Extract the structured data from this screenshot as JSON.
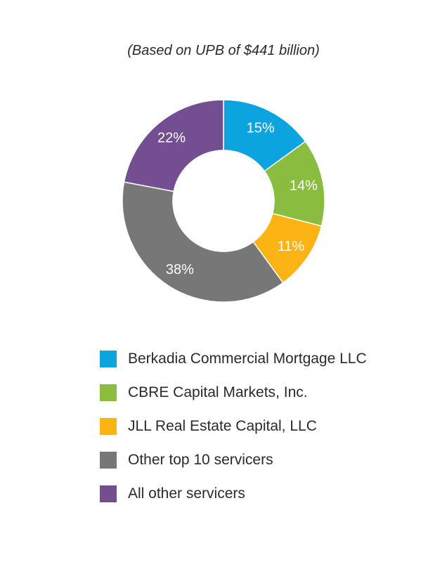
{
  "chart_data": {
    "type": "pie",
    "subtitle": "(Based on UPB of $441 billion)",
    "slices": [
      {
        "name": "Berkadia Commercial Mortgage LLC",
        "value": 15,
        "label": "15%",
        "color": "#0ba4df"
      },
      {
        "name": "CBRE Capital Markets, Inc.",
        "value": 14,
        "label": "14%",
        "color": "#8abd3f"
      },
      {
        "name": "JLL Real Estate Capital, LLC",
        "value": 11,
        "label": "11%",
        "color": "#fcb415"
      },
      {
        "name": "Other top 10 servicers",
        "value": 38,
        "label": "38%",
        "color": "#777778"
      },
      {
        "name": "All other servicers",
        "value": 22,
        "label": "22%",
        "color": "#734f91"
      }
    ],
    "legend_position": "bottom"
  }
}
